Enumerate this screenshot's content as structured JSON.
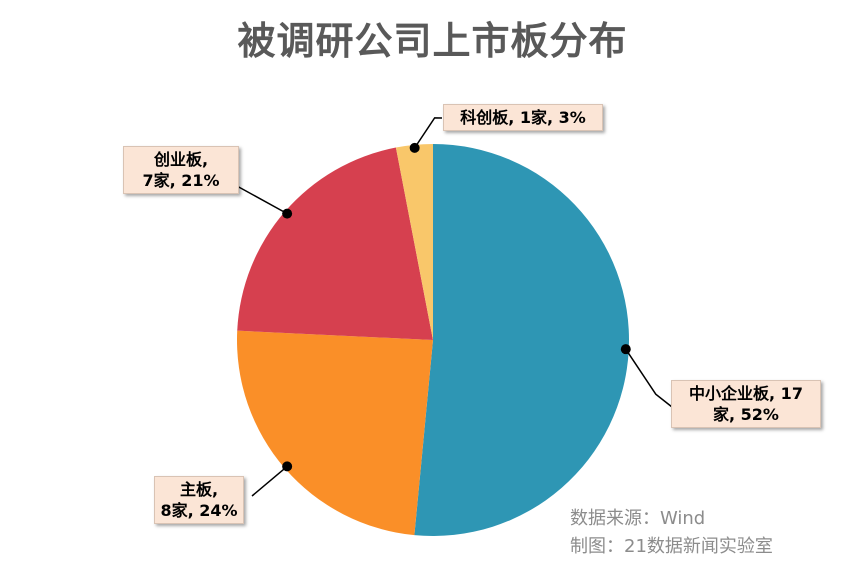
{
  "chart_data": {
    "type": "pie",
    "title": "被调研公司上市板分布",
    "slices": [
      {
        "name": "中小企业板",
        "count": 17,
        "percent": 52,
        "color": "#2e96b4",
        "label_lines": [
          "中小企业板, 17",
          "家, 52%"
        ]
      },
      {
        "name": "主板",
        "count": 8,
        "percent": 24,
        "color": "#fa8f28",
        "label_lines": [
          "主板,",
          "8家, 24%"
        ]
      },
      {
        "name": "创业板",
        "count": 7,
        "percent": 21,
        "color": "#d6404f",
        "label_lines": [
          "创业板,",
          "7家, 21%"
        ]
      },
      {
        "name": "科创板",
        "count": 1,
        "percent": 3,
        "color": "#f9c76a",
        "label_lines": [
          "科创板, 1家, 3%"
        ]
      }
    ]
  },
  "source": {
    "data_source": "数据来源：Wind",
    "made_by": "制图：21数据新闻实验室"
  }
}
